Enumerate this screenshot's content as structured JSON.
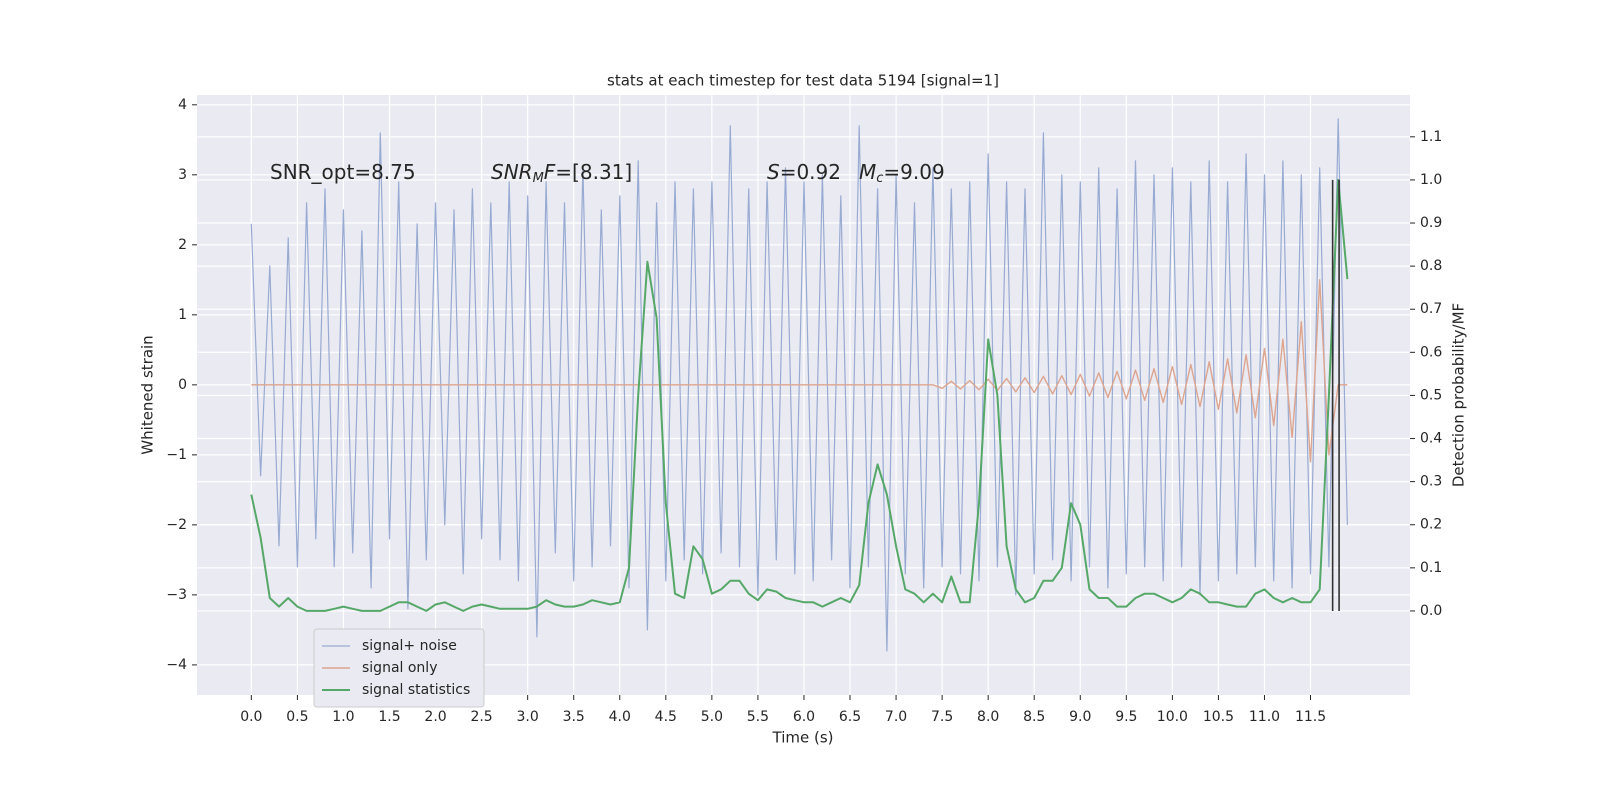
{
  "chart_data": {
    "type": "line",
    "title": "stats at each timestep for test data 5194 [signal=1]",
    "x_label": "Time (s)",
    "y_label": "Whitened strain",
    "y2_label": "Detection probability/MF",
    "annotations": [
      [
        {
          "text": "SNR_opt=8.75"
        }
      ],
      [
        {
          "text": "SNR",
          "italic": true
        },
        {
          "text": "M",
          "italic": true,
          "sub": true
        },
        {
          "text": "F",
          "italic": true
        },
        {
          "text": "=[8.31]"
        }
      ],
      [
        {
          "text": "S",
          "italic": true
        },
        {
          "text": "=0.92"
        }
      ],
      [
        {
          "text": "M",
          "italic": true
        },
        {
          "text": "c",
          "italic": true,
          "sub": true
        },
        {
          "text": "=9.09"
        }
      ]
    ],
    "x": [
      0.0,
      0.1,
      0.2,
      0.3,
      0.4,
      0.5,
      0.6,
      0.7,
      0.8,
      0.9,
      1.0,
      1.1,
      1.2,
      1.3,
      1.4,
      1.5,
      1.6,
      1.7,
      1.8,
      1.9,
      2.0,
      2.1,
      2.2,
      2.3,
      2.4,
      2.5,
      2.6,
      2.7,
      2.8,
      2.9,
      3.0,
      3.1,
      3.2,
      3.3,
      3.4,
      3.5,
      3.6,
      3.7,
      3.8,
      3.9,
      4.0,
      4.1,
      4.2,
      4.3,
      4.4,
      4.5,
      4.6,
      4.7,
      4.8,
      4.9,
      5.0,
      5.1,
      5.2,
      5.3,
      5.4,
      5.5,
      5.6,
      5.7,
      5.8,
      5.9,
      6.0,
      6.1,
      6.2,
      6.3,
      6.4,
      6.5,
      6.6,
      6.7,
      6.8,
      6.9,
      7.0,
      7.1,
      7.2,
      7.3,
      7.4,
      7.5,
      7.6,
      7.7,
      7.8,
      7.9,
      8.0,
      8.1,
      8.2,
      8.3,
      8.4,
      8.5,
      8.6,
      8.7,
      8.8,
      8.9,
      9.0,
      9.1,
      9.2,
      9.3,
      9.4,
      9.5,
      9.6,
      9.7,
      9.8,
      9.9,
      10.0,
      10.1,
      10.2,
      10.3,
      10.4,
      10.5,
      10.6,
      10.7,
      10.8,
      10.9,
      11.0,
      11.1,
      11.2,
      11.3,
      11.4,
      11.5,
      11.6,
      11.7,
      11.8,
      11.9
    ],
    "series": [
      {
        "name": "signal+ noise",
        "color": "#98abd2",
        "width": 1.2,
        "values": [
          2.3,
          -1.3,
          1.7,
          -2.3,
          2.1,
          -2.6,
          2.6,
          -2.2,
          2.8,
          -2.6,
          2.5,
          -2.4,
          2.2,
          -2.9,
          3.6,
          -2.2,
          2.9,
          -3.2,
          2.3,
          -2.5,
          2.6,
          -2.0,
          2.5,
          -2.7,
          2.8,
          -2.2,
          2.6,
          -2.5,
          2.9,
          -2.8,
          2.7,
          -3.6,
          2.9,
          -2.4,
          2.6,
          -2.8,
          3.1,
          -2.6,
          2.5,
          -2.3,
          2.7,
          -2.9,
          3.2,
          -3.5,
          2.6,
          -2.8,
          2.9,
          -2.5,
          2.8,
          -2.7,
          2.9,
          -2.4,
          3.7,
          -2.6,
          2.8,
          -3.0,
          2.9,
          -2.5,
          3.1,
          -2.7,
          2.9,
          -2.8,
          3.0,
          -2.5,
          2.7,
          -2.9,
          3.7,
          -2.6,
          2.8,
          -3.8,
          3.0,
          -2.7,
          2.6,
          -2.9,
          3.1,
          -2.6,
          2.8,
          -2.7,
          2.9,
          -2.8,
          3.3,
          -2.6,
          2.9,
          -3.0,
          2.8,
          -2.7,
          3.6,
          -2.5,
          3.0,
          -2.8,
          2.9,
          -2.6,
          3.1,
          -2.9,
          2.8,
          -2.7,
          3.2,
          -2.6,
          3.0,
          -2.8,
          3.1,
          -2.6,
          2.9,
          -3.0,
          3.2,
          -2.8,
          2.9,
          -2.7,
          3.3,
          -2.6,
          3.0,
          -2.8,
          3.2,
          -2.9,
          3.0,
          -2.7,
          3.1,
          -2.6,
          3.8,
          -2.0
        ]
      },
      {
        "name": "signal only",
        "color": "#dda58f",
        "width": 1.4,
        "values": [
          0,
          0,
          0,
          0,
          0,
          0,
          0,
          0,
          0,
          0,
          0,
          0,
          0,
          0,
          0,
          0,
          0,
          0,
          0,
          0,
          0,
          0,
          0,
          0,
          0,
          0,
          0,
          0,
          0,
          0,
          0,
          0,
          0,
          0,
          0,
          0,
          0,
          0,
          0,
          0,
          0,
          0,
          0,
          0,
          0,
          0,
          0,
          0,
          0,
          0,
          0,
          0,
          0,
          0,
          0,
          0,
          0,
          0,
          0,
          0,
          0,
          0,
          0,
          0,
          0,
          0,
          0,
          0,
          0,
          0,
          0,
          0,
          0,
          0,
          0,
          -0.05,
          0.05,
          -0.06,
          0.06,
          -0.07,
          0.08,
          -0.08,
          0.09,
          -0.1,
          0.1,
          -0.11,
          0.12,
          -0.13,
          0.13,
          -0.14,
          0.15,
          -0.16,
          0.17,
          -0.18,
          0.19,
          -0.2,
          0.21,
          -0.22,
          0.23,
          -0.25,
          0.26,
          -0.28,
          0.29,
          -0.31,
          0.33,
          -0.35,
          0.37,
          -0.4,
          0.43,
          -0.47,
          0.52,
          -0.58,
          0.65,
          -0.75,
          0.9,
          -1.1,
          1.5,
          -1.0,
          0,
          0
        ]
      },
      {
        "name": "signal statistics",
        "color": "#55a868",
        "width": 2,
        "axis": "y2",
        "values": [
          0.27,
          0.17,
          0.03,
          0.01,
          0.03,
          0.01,
          0.0,
          0.0,
          0.0,
          0.005,
          0.01,
          0.005,
          0.0,
          0.0,
          0.0,
          0.01,
          0.02,
          0.02,
          0.01,
          0.0,
          0.015,
          0.02,
          0.01,
          0.0,
          0.01,
          0.015,
          0.01,
          0.005,
          0.005,
          0.005,
          0.005,
          0.01,
          0.025,
          0.015,
          0.01,
          0.01,
          0.015,
          0.025,
          0.02,
          0.015,
          0.02,
          0.1,
          0.5,
          0.81,
          0.68,
          0.25,
          0.04,
          0.03,
          0.15,
          0.12,
          0.04,
          0.05,
          0.07,
          0.07,
          0.04,
          0.025,
          0.05,
          0.045,
          0.03,
          0.025,
          0.02,
          0.02,
          0.01,
          0.02,
          0.03,
          0.02,
          0.06,
          0.25,
          0.34,
          0.27,
          0.15,
          0.05,
          0.04,
          0.02,
          0.04,
          0.02,
          0.08,
          0.02,
          0.02,
          0.25,
          0.63,
          0.5,
          0.15,
          0.05,
          0.02,
          0.03,
          0.07,
          0.07,
          0.1,
          0.25,
          0.2,
          0.05,
          0.03,
          0.03,
          0.01,
          0.01,
          0.03,
          0.04,
          0.04,
          0.03,
          0.02,
          0.03,
          0.05,
          0.04,
          0.02,
          0.02,
          0.015,
          0.01,
          0.01,
          0.04,
          0.05,
          0.03,
          0.02,
          0.03,
          0.02,
          0.02,
          0.05,
          0.5,
          1.0,
          0.77
        ]
      }
    ],
    "vlines": [
      11.74,
      11.81
    ],
    "vline_color": "#333333",
    "xlim": [
      -0.59,
      12.58
    ],
    "xticks": [
      {
        "value": 0,
        "label": "0.0"
      },
      0.5,
      {
        "value": 1,
        "label": "1.0"
      },
      1.5,
      {
        "value": 2,
        "label": "2.0"
      },
      2.5,
      {
        "value": 3,
        "label": "3.0"
      },
      3.5,
      {
        "value": 4,
        "label": "4.0"
      },
      4.5,
      {
        "value": 5,
        "label": "5.0"
      },
      5.5,
      {
        "value": 6,
        "label": "6.0"
      },
      6.5,
      {
        "value": 7,
        "label": "7.0"
      },
      7.5,
      {
        "value": 8,
        "label": "8.0"
      },
      8.5,
      {
        "value": 9,
        "label": "9.0"
      },
      9.5,
      {
        "value": 10,
        "label": "10.0"
      },
      10.5,
      {
        "value": 11,
        "label": "11.0"
      },
      11.5
    ],
    "ylim": [
      -4.43,
      4.14
    ],
    "yticks": [
      {
        "value": -4,
        "label": "−4"
      },
      {
        "value": -3,
        "label": "−3"
      },
      {
        "value": -2,
        "label": "−2"
      },
      {
        "value": -1,
        "label": "−1"
      },
      0,
      1,
      2,
      3,
      4
    ],
    "y2lim": [
      -0.195,
      1.197
    ],
    "y2ticks": [
      {
        "value": 0,
        "label": "0.0"
      },
      0.1,
      0.2,
      0.3,
      0.4,
      0.5,
      0.6,
      0.7,
      0.8,
      0.9,
      {
        "value": 1,
        "label": "1.0"
      },
      1.1
    ],
    "grid": true,
    "legend": "lower left"
  }
}
